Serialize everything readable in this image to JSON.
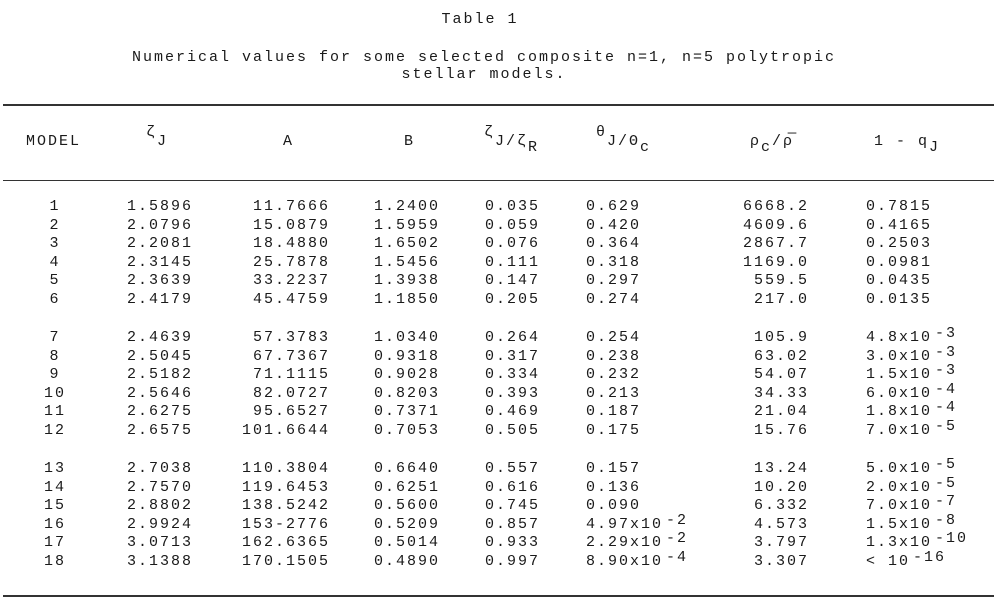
{
  "title": "Table 1",
  "caption_line1": "Numerical values for some selected composite n=1, n=5 polytropic",
  "caption_line2": "stellar models.",
  "headers": {
    "model": "MODEL",
    "zeta_j": {
      "sym": "ζ",
      "sub": "J"
    },
    "a": "A",
    "b": "B",
    "zeta_ratio": {
      "sym1": "ζ",
      "sub1": "J",
      "mid": "/ζ",
      "sub2": "R"
    },
    "theta_ratio": {
      "sym1": "θ",
      "sub1": "J",
      "mid": "/Θ",
      "sub2": "c"
    },
    "rho_ratio": {
      "sym1": "ρ",
      "sub1": "c",
      "mid": "/",
      "sym2": "ρ̅"
    },
    "one_minus_q": {
      "text": "1 - q",
      "sub": "J"
    }
  },
  "rows": [
    [
      "1",
      "1.5896",
      "11.7666",
      "1.2400",
      "0.035",
      [
        "0.629",
        ""
      ],
      "6668.2",
      [
        "0.7815",
        ""
      ]
    ],
    [
      "2",
      "2.0796",
      "15.0879",
      "1.5959",
      "0.059",
      [
        "0.420",
        ""
      ],
      "4609.6",
      [
        "0.4165",
        ""
      ]
    ],
    [
      "3",
      "2.2081",
      "18.4880",
      "1.6502",
      "0.076",
      [
        "0.364",
        ""
      ],
      "2867.7",
      [
        "0.2503",
        ""
      ]
    ],
    [
      "4",
      "2.3145",
      "25.7878",
      "1.5456",
      "0.111",
      [
        "0.318",
        ""
      ],
      "1169.0",
      [
        "0.0981",
        ""
      ]
    ],
    [
      "5",
      "2.3639",
      "33.2237",
      "1.3938",
      "0.147",
      [
        "0.297",
        ""
      ],
      "559.5",
      [
        "0.0435",
        ""
      ]
    ],
    [
      "6",
      "2.4179",
      "45.4759",
      "1.1850",
      "0.205",
      [
        "0.274",
        ""
      ],
      "217.0",
      [
        "0.0135",
        ""
      ]
    ],
    [
      "7",
      "2.4639",
      "57.3783",
      "1.0340",
      "0.264",
      [
        "0.254",
        ""
      ],
      "105.9",
      [
        "4.8x10",
        "-3"
      ]
    ],
    [
      "8",
      "2.5045",
      "67.7367",
      "0.9318",
      "0.317",
      [
        "0.238",
        ""
      ],
      "63.02",
      [
        "3.0x10",
        "-3"
      ]
    ],
    [
      "9",
      "2.5182",
      "71.1115",
      "0.9028",
      "0.334",
      [
        "0.232",
        ""
      ],
      "54.07",
      [
        "1.5x10",
        "-3"
      ]
    ],
    [
      "10",
      "2.5646",
      "82.0727",
      "0.8203",
      "0.393",
      [
        "0.213",
        ""
      ],
      "34.33",
      [
        "6.0x10",
        "-4"
      ]
    ],
    [
      "11",
      "2.6275",
      "95.6527",
      "0.7371",
      "0.469",
      [
        "0.187",
        ""
      ],
      "21.04",
      [
        "1.8x10",
        "-4"
      ]
    ],
    [
      "12",
      "2.6575",
      "101.6644",
      "0.7053",
      "0.505",
      [
        "0.175",
        ""
      ],
      "15.76",
      [
        "7.0x10",
        "-5"
      ]
    ],
    [
      "13",
      "2.7038",
      "110.3804",
      "0.6640",
      "0.557",
      [
        "0.157",
        ""
      ],
      "13.24",
      [
        "5.0x10",
        "-5"
      ]
    ],
    [
      "14",
      "2.7570",
      "119.6453",
      "0.6251",
      "0.616",
      [
        "0.136",
        ""
      ],
      "10.20",
      [
        "2.0x10",
        "-5"
      ]
    ],
    [
      "15",
      "2.8802",
      "138.5242",
      "0.5600",
      "0.745",
      [
        "0.090",
        ""
      ],
      "6.332",
      [
        "7.0x10",
        "-7"
      ]
    ],
    [
      "16",
      "2.9924",
      "153-2776",
      "0.5209",
      "0.857",
      [
        "4.97x10",
        "-2"
      ],
      "4.573",
      [
        "1.5x10",
        "-8"
      ]
    ],
    [
      "17",
      "3.0713",
      "162.6365",
      "0.5014",
      "0.933",
      [
        "2.29x10",
        "-2"
      ],
      "3.797",
      [
        "1.3x10",
        "-10"
      ]
    ],
    [
      "18",
      "3.1388",
      "170.1505",
      "0.4890",
      "0.997",
      [
        "8.90x10",
        "-4"
      ],
      "3.307",
      [
        "< 10",
        "-16"
      ]
    ]
  ]
}
